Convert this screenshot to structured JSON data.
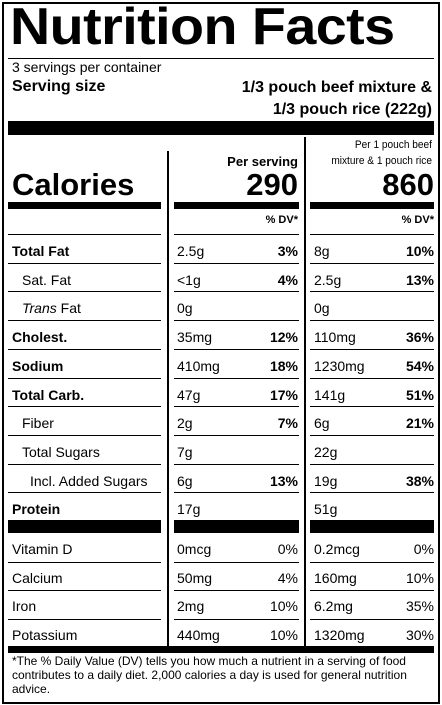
{
  "title": "Nutrition Facts",
  "servings_per_container": "3 servings per container",
  "serving_size": {
    "label": "Serving size",
    "value_line1": "1/3 pouch beef mixture &",
    "value_line2": "1/3 pouch rice (222g)"
  },
  "columns": {
    "per_serving_header": "Per serving",
    "per_pouch_header_line1": "Per 1 pouch beef",
    "per_pouch_header_line2": "mixture & 1 pouch rice",
    "dv_header": "% DV*"
  },
  "calories": {
    "label": "Calories",
    "per_serving": "290",
    "per_pouch": "860"
  },
  "nutrients": [
    {
      "name": "Total Fat",
      "bold": true,
      "indent": 0,
      "s_amt": "2.5g",
      "s_dv": "3%",
      "p_amt": "8g",
      "p_dv": "10%"
    },
    {
      "name": "Sat. Fat",
      "bold": false,
      "indent": 1,
      "s_amt": "<1g",
      "s_dv": "4%",
      "p_amt": "2.5g",
      "p_dv": "13%"
    },
    {
      "name_italic": "Trans",
      "name_rest": " Fat",
      "bold": false,
      "indent": 1,
      "s_amt": "0g",
      "s_dv": "",
      "p_amt": "0g",
      "p_dv": ""
    },
    {
      "name": "Cholest.",
      "bold": true,
      "indent": 0,
      "s_amt": "35mg",
      "s_dv": "12%",
      "p_amt": "110mg",
      "p_dv": "36%"
    },
    {
      "name": "Sodium",
      "bold": true,
      "indent": 0,
      "s_amt": "410mg",
      "s_dv": "18%",
      "p_amt": "1230mg",
      "p_dv": "54%"
    },
    {
      "name": "Total Carb.",
      "bold": true,
      "indent": 0,
      "s_amt": "47g",
      "s_dv": "17%",
      "p_amt": "141g",
      "p_dv": "51%"
    },
    {
      "name": "Fiber",
      "bold": false,
      "indent": 1,
      "s_amt": "2g",
      "s_dv": "7%",
      "p_amt": "6g",
      "p_dv": "21%"
    },
    {
      "name": "Total Sugars",
      "bold": false,
      "indent": 1,
      "s_amt": "7g",
      "s_dv": "",
      "p_amt": "22g",
      "p_dv": ""
    },
    {
      "name": "Incl. Added Sugars",
      "bold": false,
      "indent": 2,
      "s_amt": "6g",
      "s_dv": "13%",
      "p_amt": "19g",
      "p_dv": "38%"
    },
    {
      "name": "Protein",
      "bold": true,
      "indent": 0,
      "s_amt": "17g",
      "s_dv": "",
      "p_amt": "51g",
      "p_dv": ""
    }
  ],
  "vitamins": [
    {
      "name": "Vitamin D",
      "s_amt": "0mcg",
      "s_dv": "0%",
      "p_amt": "0.2mcg",
      "p_dv": "0%"
    },
    {
      "name": "Calcium",
      "s_amt": "50mg",
      "s_dv": "4%",
      "p_amt": "160mg",
      "p_dv": "10%"
    },
    {
      "name": "Iron",
      "s_amt": "2mg",
      "s_dv": "10%",
      "p_amt": "6.2mg",
      "p_dv": "35%"
    },
    {
      "name": "Potassium",
      "s_amt": "440mg",
      "s_dv": "10%",
      "p_amt": "1320mg",
      "p_dv": "30%"
    }
  ],
  "footnote": "*The % Daily Value (DV) tells you how much a nutrient in a serving of food contributes to a daily diet. 2,000 calories a day is used for general nutrition advice."
}
